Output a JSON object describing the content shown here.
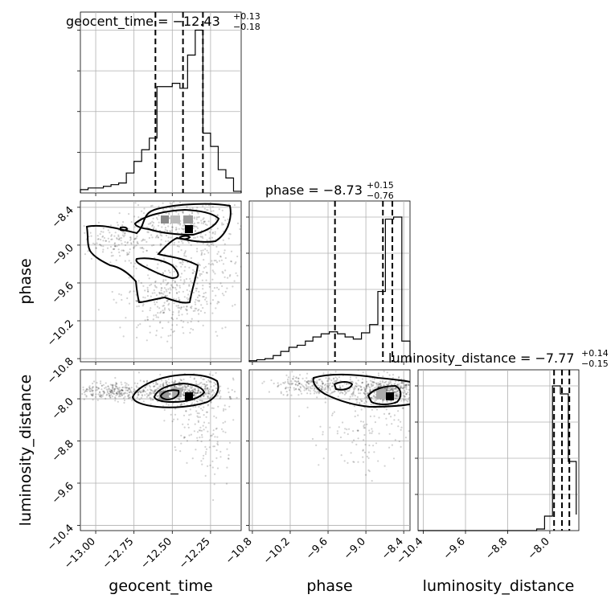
{
  "chart_data": {
    "type": "corner",
    "parameters": [
      "geocent_time",
      "phase",
      "luminosity_distance"
    ],
    "titles": [
      {
        "param": "geocent_time",
        "prefix": "geocent_time = ",
        "median": "−12.43",
        "plus": "+0.13",
        "minus": "−0.18"
      },
      {
        "param": "phase",
        "prefix": "phase = ",
        "median": "−8.73",
        "plus": "+0.15",
        "minus": "−0.76"
      },
      {
        "param": "luminosity_distance",
        "prefix": "luminosity_distance = ",
        "median": "−7.77",
        "plus": "+0.14",
        "minus": "−0.15"
      }
    ],
    "ranges": {
      "geocent_time": [
        -13.1,
        -12.05
      ],
      "phase": [
        -10.85,
        -8.3
      ],
      "luminosity_distance": [
        -10.5,
        -7.45
      ]
    },
    "ticks": {
      "geocent_time": {
        "values": [
          -13.0,
          -12.75,
          -12.5,
          -12.25
        ],
        "labels": [
          "−13.00",
          "−12.75",
          "−12.50",
          "−12.25"
        ]
      },
      "phase": {
        "values": [
          -10.8,
          -10.2,
          -9.6,
          -9.0,
          -8.4
        ],
        "labels": [
          "−10.8",
          "−10.2",
          "−9.6",
          "−9.0",
          "−8.4"
        ]
      },
      "luminosity_distance": {
        "values": [
          -10.4,
          -9.6,
          -8.8,
          -8.0
        ],
        "labels": [
          "−10.4",
          "−9.6",
          "−8.8",
          "−8.0"
        ]
      }
    },
    "quantiles": {
      "geocent_time": [
        -12.61,
        -12.43,
        -12.3
      ],
      "phase": [
        -9.49,
        -8.73,
        -8.58
      ],
      "luminosity_distance": [
        -7.92,
        -7.77,
        -7.63
      ]
    },
    "histograms": {
      "geocent_time": {
        "edges": [
          -13.1,
          -13.05,
          -13.0,
          -12.95,
          -12.9,
          -12.85,
          -12.8,
          -12.75,
          -12.7,
          -12.65,
          -12.6,
          -12.55,
          -12.5,
          -12.45,
          -12.4,
          -12.35,
          -12.3,
          -12.25,
          -12.2,
          -12.15,
          -12.1,
          -12.05
        ],
        "counts": [
          2,
          3,
          3,
          4,
          5,
          6,
          12,
          19,
          26,
          33,
          64,
          64,
          66,
          63,
          83,
          98,
          36,
          28,
          14,
          9,
          1
        ]
      },
      "phase": {
        "edges": [
          -10.85,
          -10.73,
          -10.6,
          -10.47,
          -10.35,
          -10.22,
          -10.09,
          -9.96,
          -9.84,
          -9.71,
          -9.58,
          -9.45,
          -9.33,
          -9.2,
          -9.07,
          -8.94,
          -8.81,
          -8.69,
          -8.56,
          -8.43,
          -8.3
        ],
        "counts": [
          1,
          2,
          3,
          6,
          10,
          14,
          16,
          20,
          24,
          27,
          29,
          27,
          24,
          22,
          28,
          36,
          68,
          138,
          140,
          20
        ]
      },
      "luminosity_distance": {
        "edges": [
          -10.5,
          -10.35,
          -10.2,
          -10.05,
          -9.9,
          -9.75,
          -9.6,
          -9.45,
          -9.3,
          -9.15,
          -9.0,
          -8.85,
          -8.7,
          -8.55,
          -8.4,
          -8.25,
          -8.1,
          -7.95,
          -7.8,
          -7.65,
          -7.5
        ],
        "counts": [
          0,
          0,
          0,
          0,
          0,
          0,
          0,
          0,
          0,
          0,
          0,
          0,
          0,
          0,
          0,
          1,
          9,
          90,
          85,
          43,
          10
        ]
      }
    },
    "axis_labels": {
      "x": [
        "geocent_time",
        "phase",
        "luminosity_distance"
      ],
      "y": [
        "phase",
        "luminosity_distance"
      ]
    },
    "grid": true
  }
}
